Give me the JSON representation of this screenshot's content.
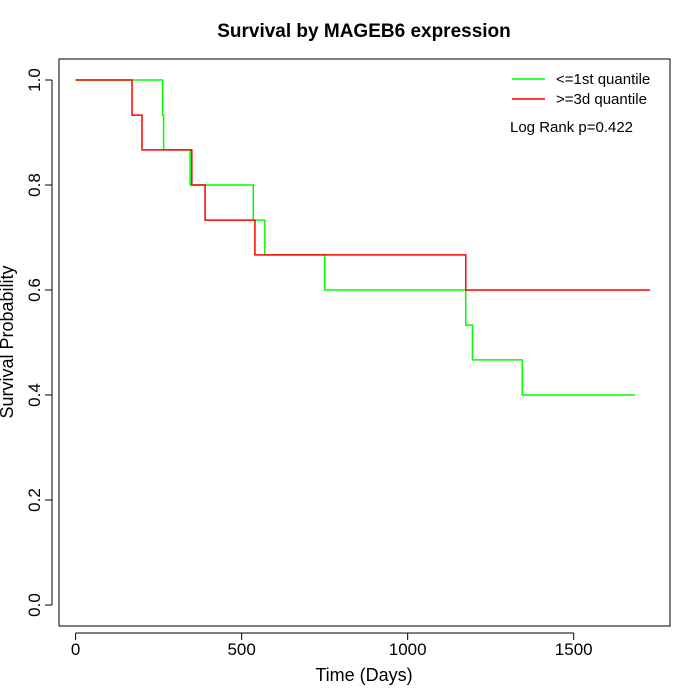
{
  "chart_data": {
    "type": "line",
    "title": "Survival by MAGEB6 expression",
    "xlabel": "Time (Days)",
    "ylabel": "Survival Probability",
    "xlim": [
      -50,
      1790
    ],
    "ylim": [
      -0.04,
      1.04
    ],
    "x_ticks": [
      0,
      500,
      1000,
      1500
    ],
    "y_ticks": [
      0.0,
      0.2,
      0.4,
      0.6,
      0.8,
      1.0
    ],
    "x_tick_labels": [
      "0",
      "500",
      "1000",
      "1500"
    ],
    "y_tick_labels": [
      "0.0",
      "0.2",
      "0.4",
      "0.6",
      "0.8",
      "1.0"
    ],
    "grid": false,
    "legend_position": "top-right",
    "annotation": "Log Rank p=0.422",
    "series": [
      {
        "name": "<=1st quantile",
        "color": "#00ff00",
        "step": true,
        "points": [
          [
            0,
            1.0
          ],
          [
            255,
            1.0
          ],
          [
            262,
            0.933
          ],
          [
            265,
            0.867
          ],
          [
            345,
            0.8
          ],
          [
            535,
            0.733
          ],
          [
            570,
            0.667
          ],
          [
            750,
            0.6
          ],
          [
            1175,
            0.533
          ],
          [
            1195,
            0.467
          ],
          [
            1345,
            0.4
          ],
          [
            1685,
            0.4
          ]
        ]
      },
      {
        "name": ">=3d quantile",
        "color": "#ff0000",
        "step": true,
        "points": [
          [
            0,
            1.0
          ],
          [
            170,
            0.933
          ],
          [
            200,
            0.867
          ],
          [
            350,
            0.8
          ],
          [
            390,
            0.733
          ],
          [
            540,
            0.667
          ],
          [
            1175,
            0.6
          ],
          [
            1730,
            0.6
          ]
        ]
      }
    ]
  }
}
